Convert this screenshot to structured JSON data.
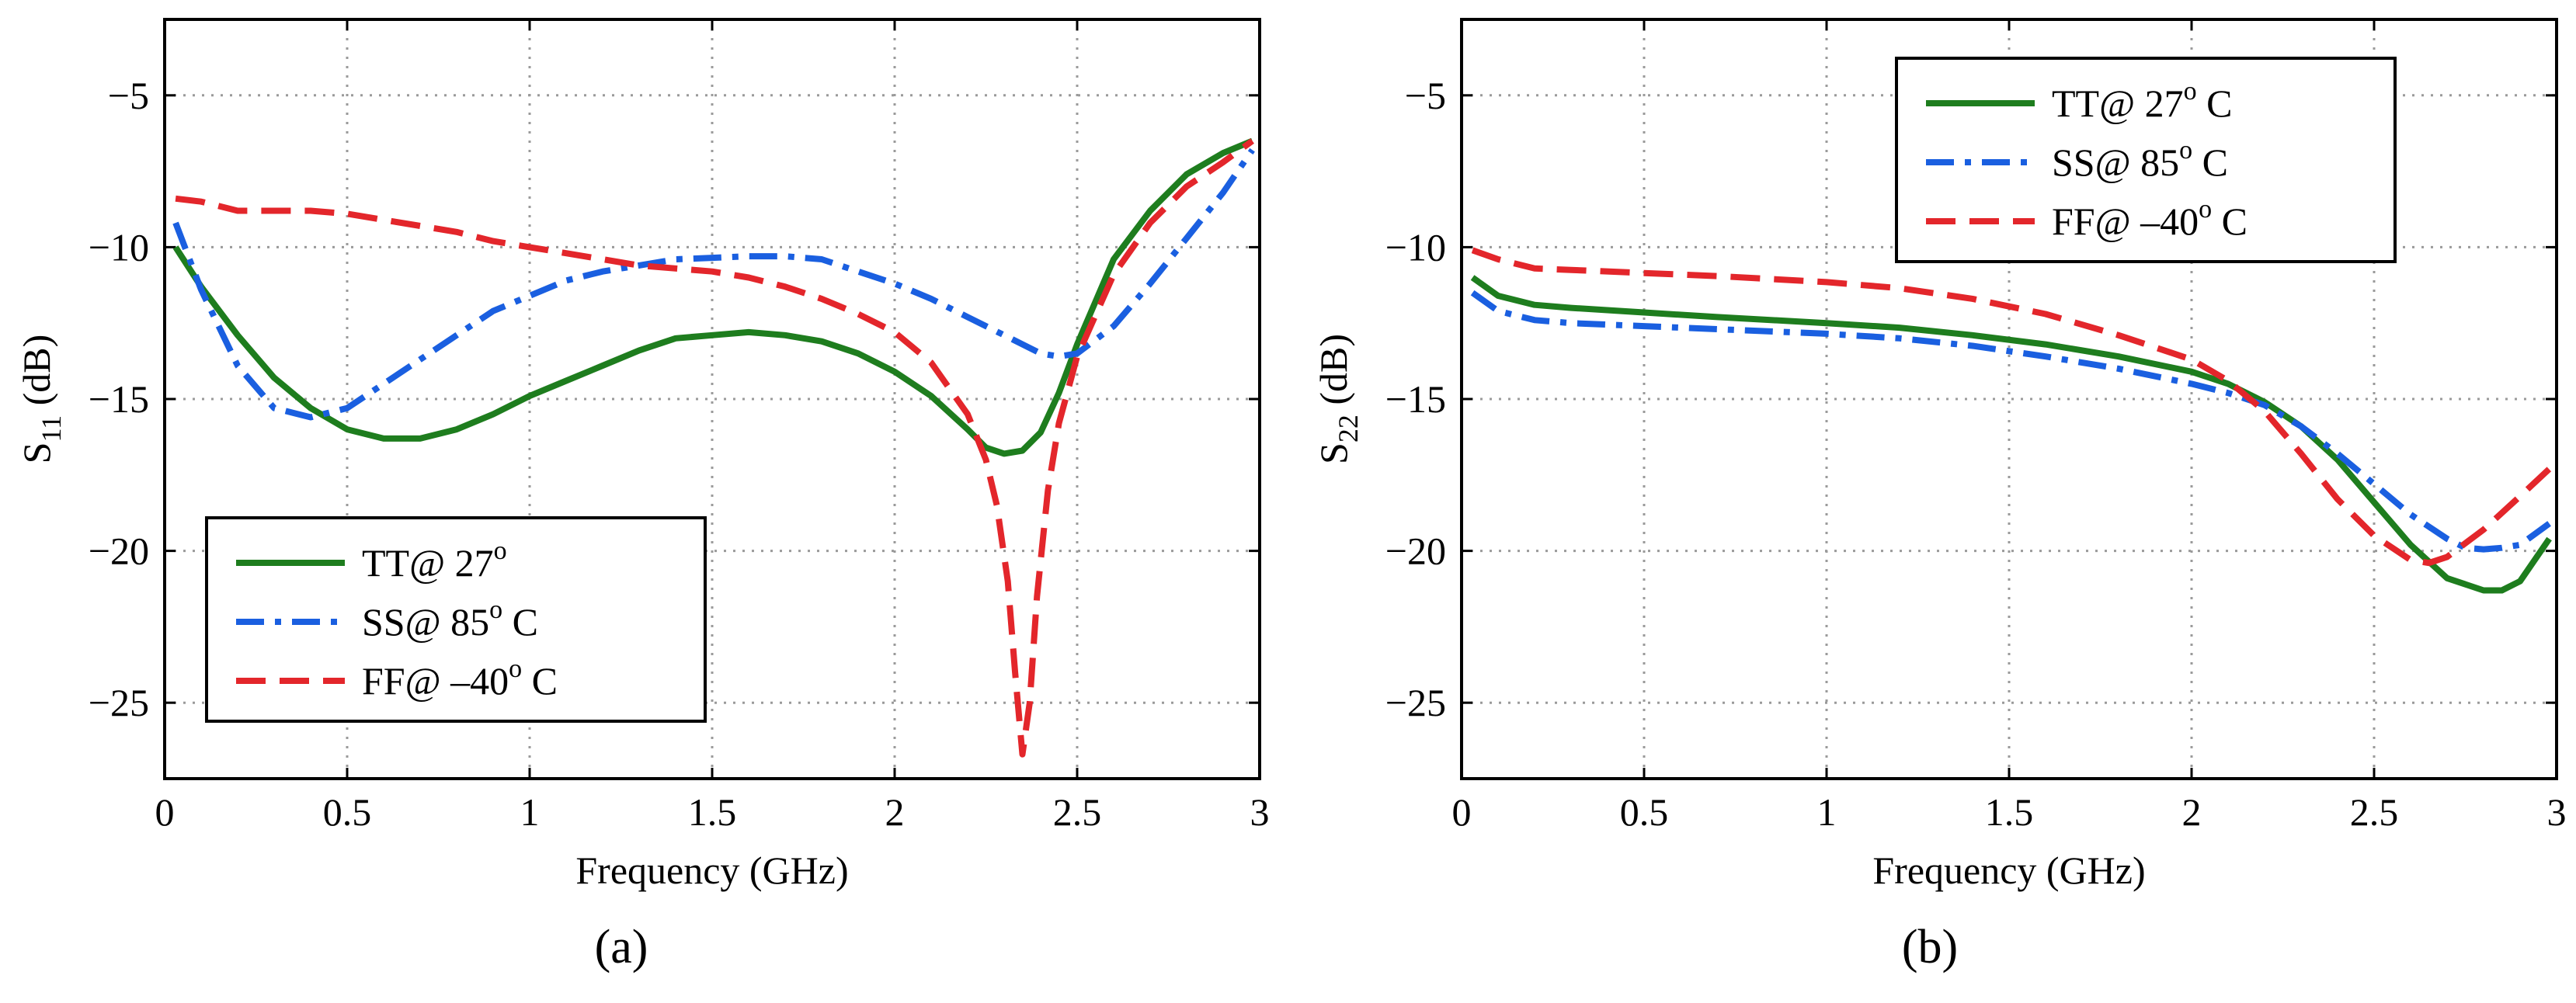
{
  "chart_data": [
    {
      "type": "line",
      "panel_label": "(a)",
      "xlabel": "Frequency (GHz)",
      "ylabel": "S11 (dB)",
      "ylabel_main": "S",
      "ylabel_sub": "11",
      "ylabel_tail": " (dB)",
      "xlim": [
        0,
        3
      ],
      "ylim": [
        -27.5,
        -2.5
      ],
      "xticks": [
        0,
        0.5,
        1,
        1.5,
        2,
        2.5,
        3
      ],
      "xtick_labels": [
        "0",
        "0.5",
        "1",
        "1.5",
        "2",
        "2.5",
        "3"
      ],
      "yticks": [
        -5,
        -10,
        -15,
        -20,
        -25
      ],
      "ytick_labels": [
        "−5",
        "−10",
        "−15",
        "−20",
        "−25"
      ],
      "grid": true,
      "legend_position": "bottom-left",
      "series": [
        {
          "name": "TT@ 27°",
          "label_parts": [
            "TT@ 27",
            "o",
            ""
          ],
          "color": "#1e7d1e",
          "dash": "solid",
          "x": [
            0.03,
            0.1,
            0.2,
            0.3,
            0.4,
            0.5,
            0.6,
            0.7,
            0.8,
            0.9,
            1.0,
            1.1,
            1.2,
            1.3,
            1.4,
            1.5,
            1.6,
            1.7,
            1.8,
            1.9,
            2.0,
            2.1,
            2.2,
            2.25,
            2.3,
            2.35,
            2.4,
            2.45,
            2.5,
            2.55,
            2.6,
            2.7,
            2.8,
            2.9,
            2.98
          ],
          "y": [
            -10.0,
            -11.3,
            -12.9,
            -14.3,
            -15.3,
            -16.0,
            -16.3,
            -16.3,
            -16.0,
            -15.5,
            -14.9,
            -14.4,
            -13.9,
            -13.4,
            -13.0,
            -12.9,
            -12.8,
            -12.9,
            -13.1,
            -13.5,
            -14.1,
            -14.9,
            -16.0,
            -16.6,
            -16.8,
            -16.7,
            -16.1,
            -14.8,
            -13.2,
            -11.8,
            -10.4,
            -8.8,
            -7.6,
            -6.9,
            -6.5
          ]
        },
        {
          "name": "SS@ 85° C",
          "label_parts": [
            "SS@ 85",
            "o",
            " C"
          ],
          "color": "#1a5fe0",
          "dash": "dashdot",
          "x": [
            0.03,
            0.1,
            0.2,
            0.3,
            0.4,
            0.5,
            0.6,
            0.7,
            0.8,
            0.9,
            1.0,
            1.1,
            1.2,
            1.3,
            1.4,
            1.5,
            1.6,
            1.7,
            1.8,
            1.9,
            2.0,
            2.1,
            2.2,
            2.3,
            2.4,
            2.45,
            2.5,
            2.6,
            2.7,
            2.8,
            2.9,
            2.98
          ],
          "y": [
            -9.2,
            -11.4,
            -13.9,
            -15.3,
            -15.6,
            -15.3,
            -14.5,
            -13.7,
            -12.9,
            -12.1,
            -11.6,
            -11.1,
            -10.8,
            -10.6,
            -10.4,
            -10.35,
            -10.3,
            -10.3,
            -10.4,
            -10.8,
            -11.2,
            -11.7,
            -12.3,
            -12.9,
            -13.5,
            -13.6,
            -13.5,
            -12.6,
            -11.2,
            -9.7,
            -8.2,
            -6.8
          ]
        },
        {
          "name": "FF@ –40° C",
          "label_parts": [
            "FF@ –40",
            "o",
            " C"
          ],
          "color": "#e3262b",
          "dash": "dashed",
          "x": [
            0.03,
            0.1,
            0.2,
            0.3,
            0.4,
            0.5,
            0.6,
            0.7,
            0.8,
            0.9,
            1.0,
            1.1,
            1.2,
            1.3,
            1.4,
            1.5,
            1.6,
            1.7,
            1.8,
            1.9,
            2.0,
            2.1,
            2.2,
            2.25,
            2.28,
            2.31,
            2.33,
            2.35,
            2.37,
            2.39,
            2.42,
            2.45,
            2.5,
            2.6,
            2.7,
            2.8,
            2.9,
            2.98
          ],
          "y": [
            -8.4,
            -8.5,
            -8.8,
            -8.8,
            -8.8,
            -8.9,
            -9.1,
            -9.3,
            -9.5,
            -9.8,
            -10.0,
            -10.2,
            -10.4,
            -10.6,
            -10.7,
            -10.8,
            -11.0,
            -11.3,
            -11.7,
            -12.2,
            -12.8,
            -13.8,
            -15.5,
            -17.0,
            -18.5,
            -21.0,
            -24.0,
            -26.7,
            -25.0,
            -21.5,
            -18.0,
            -15.8,
            -13.6,
            -10.9,
            -9.2,
            -8.0,
            -7.2,
            -6.5
          ]
        }
      ]
    },
    {
      "type": "line",
      "panel_label": "(b)",
      "xlabel": "Frequency (GHz)",
      "ylabel": "S22 (dB)",
      "ylabel_main": "S",
      "ylabel_sub": "22",
      "ylabel_tail": " (dB)",
      "xlim": [
        0,
        3
      ],
      "ylim": [
        -27.5,
        -2.5
      ],
      "xticks": [
        0,
        0.5,
        1,
        1.5,
        2,
        2.5,
        3
      ],
      "xtick_labels": [
        "0",
        "0.5",
        "1",
        "1.5",
        "2",
        "2.5",
        "3"
      ],
      "yticks": [
        -5,
        -10,
        -15,
        -20,
        -25
      ],
      "ytick_labels": [
        "−5",
        "−10",
        "−15",
        "−20",
        "−25"
      ],
      "grid": true,
      "legend_position": "top-right",
      "series": [
        {
          "name": "TT@ 27° C",
          "label_parts": [
            "TT@ 27",
            "o",
            " C"
          ],
          "color": "#1e7d1e",
          "dash": "solid",
          "x": [
            0.03,
            0.1,
            0.2,
            0.3,
            0.5,
            0.7,
            1.0,
            1.2,
            1.4,
            1.6,
            1.8,
            2.0,
            2.1,
            2.2,
            2.3,
            2.4,
            2.5,
            2.6,
            2.7,
            2.8,
            2.85,
            2.9,
            2.98
          ],
          "y": [
            -11.0,
            -11.6,
            -11.9,
            -12.0,
            -12.15,
            -12.3,
            -12.5,
            -12.65,
            -12.9,
            -13.2,
            -13.6,
            -14.1,
            -14.5,
            -15.1,
            -15.9,
            -17.0,
            -18.4,
            -19.8,
            -20.9,
            -21.3,
            -21.3,
            -21.0,
            -19.6
          ]
        },
        {
          "name": "SS@ 85° C",
          "label_parts": [
            "SS@ 85",
            "o",
            " C"
          ],
          "color": "#1a5fe0",
          "dash": "dashdot",
          "x": [
            0.03,
            0.1,
            0.2,
            0.3,
            0.5,
            0.7,
            1.0,
            1.2,
            1.4,
            1.6,
            1.8,
            2.0,
            2.1,
            2.2,
            2.3,
            2.4,
            2.5,
            2.6,
            2.7,
            2.75,
            2.8,
            2.85,
            2.9,
            2.98
          ],
          "y": [
            -11.5,
            -12.1,
            -12.4,
            -12.5,
            -12.6,
            -12.7,
            -12.85,
            -13.0,
            -13.25,
            -13.6,
            -14.0,
            -14.5,
            -14.8,
            -15.2,
            -15.9,
            -16.8,
            -17.8,
            -18.8,
            -19.6,
            -19.9,
            -19.95,
            -19.9,
            -19.8,
            -19.1
          ]
        },
        {
          "name": "FF@ –40° C",
          "label_parts": [
            "FF@ –40",
            "o",
            " C"
          ],
          "color": "#e3262b",
          "dash": "dashed",
          "x": [
            0.03,
            0.1,
            0.2,
            0.3,
            0.5,
            0.7,
            1.0,
            1.2,
            1.4,
            1.6,
            1.8,
            2.0,
            2.1,
            2.2,
            2.3,
            2.4,
            2.5,
            2.6,
            2.65,
            2.7,
            2.8,
            2.9,
            2.98
          ],
          "y": [
            -10.1,
            -10.4,
            -10.7,
            -10.75,
            -10.85,
            -10.95,
            -11.15,
            -11.35,
            -11.7,
            -12.2,
            -12.9,
            -13.7,
            -14.4,
            -15.4,
            -16.8,
            -18.3,
            -19.5,
            -20.3,
            -20.4,
            -20.2,
            -19.3,
            -18.2,
            -17.3
          ]
        }
      ]
    }
  ]
}
